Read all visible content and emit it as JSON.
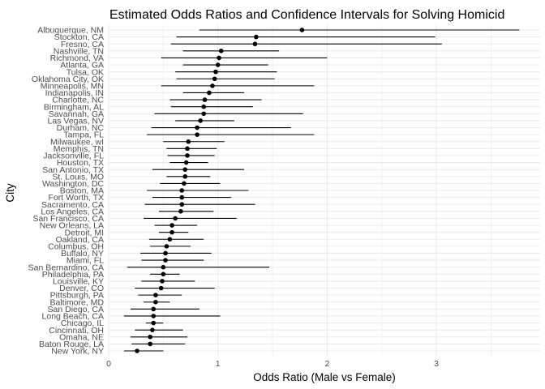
{
  "chart_data": {
    "type": "forest",
    "title": "Estimated Odds Ratios and Confidence Intervals for Solving Homicid",
    "xlabel": "Odds Ratio (Male vs Female)",
    "ylabel": "City",
    "xlim": [
      0,
      3.95
    ],
    "xticks": [
      0,
      1,
      2,
      3
    ],
    "grid": true,
    "colors": {
      "point": "#000000",
      "ci": "#000000",
      "grid": "#ebebeb"
    },
    "cities": [
      {
        "city": "Albuquerque, NM",
        "or": 1.77,
        "lower": 0.83,
        "upper": 3.76
      },
      {
        "city": "Stockton, CA",
        "or": 1.35,
        "lower": 0.62,
        "upper": 2.99
      },
      {
        "city": "Fresno, CA",
        "or": 1.34,
        "lower": 0.57,
        "upper": 3.05
      },
      {
        "city": "Nashville, TN",
        "or": 1.03,
        "lower": 0.68,
        "upper": 1.56
      },
      {
        "city": "Richmond, VA",
        "or": 1.01,
        "lower": 0.48,
        "upper": 2.0
      },
      {
        "city": "Atlanta, GA",
        "or": 1.0,
        "lower": 0.68,
        "upper": 1.46
      },
      {
        "city": "Tulsa, OK",
        "or": 0.98,
        "lower": 0.61,
        "upper": 1.54
      },
      {
        "city": "Oklahoma City, OK",
        "or": 0.97,
        "lower": 0.62,
        "upper": 1.52
      },
      {
        "city": "Minneapolis, MN",
        "or": 0.95,
        "lower": 0.48,
        "upper": 1.88
      },
      {
        "city": "Indianapolis, IN",
        "or": 0.92,
        "lower": 0.68,
        "upper": 1.24
      },
      {
        "city": "Charlotte, NC",
        "or": 0.88,
        "lower": 0.56,
        "upper": 1.4
      },
      {
        "city": "Birmingham, AL",
        "or": 0.87,
        "lower": 0.57,
        "upper": 1.32
      },
      {
        "city": "Savannah, GA",
        "or": 0.87,
        "lower": 0.42,
        "upper": 1.78
      },
      {
        "city": "Las Vegas, NV",
        "or": 0.84,
        "lower": 0.61,
        "upper": 1.15
      },
      {
        "city": "Durham, NC",
        "or": 0.81,
        "lower": 0.39,
        "upper": 1.67
      },
      {
        "city": "Tampa, FL",
        "or": 0.81,
        "lower": 0.35,
        "upper": 1.88
      },
      {
        "city": "Milwaukee, wI",
        "or": 0.73,
        "lower": 0.5,
        "upper": 1.06
      },
      {
        "city": "Memphis, TN",
        "or": 0.72,
        "lower": 0.53,
        "upper": 0.99
      },
      {
        "city": "Jacksonville, FL",
        "or": 0.72,
        "lower": 0.54,
        "upper": 0.97
      },
      {
        "city": "Houston, TX",
        "or": 0.71,
        "lower": 0.56,
        "upper": 0.91
      },
      {
        "city": "San Antonio, TX",
        "or": 0.7,
        "lower": 0.4,
        "upper": 1.24
      },
      {
        "city": "St. Louis, MO",
        "or": 0.7,
        "lower": 0.53,
        "upper": 0.93
      },
      {
        "city": "Washington, DC",
        "or": 0.69,
        "lower": 0.47,
        "upper": 1.02
      },
      {
        "city": "Boston, MA",
        "or": 0.67,
        "lower": 0.35,
        "upper": 1.28
      },
      {
        "city": "Fort Worth, TX",
        "or": 0.67,
        "lower": 0.4,
        "upper": 1.12
      },
      {
        "city": "Sacramento, CA",
        "or": 0.67,
        "lower": 0.33,
        "upper": 1.34
      },
      {
        "city": "Los Angeles, CA",
        "or": 0.66,
        "lower": 0.46,
        "upper": 0.96
      },
      {
        "city": "San Francisco, CA",
        "or": 0.61,
        "lower": 0.32,
        "upper": 1.17
      },
      {
        "city": "New Orleans, LA",
        "or": 0.58,
        "lower": 0.42,
        "upper": 0.81
      },
      {
        "city": "Detroit, MI",
        "or": 0.58,
        "lower": 0.46,
        "upper": 0.73
      },
      {
        "city": "Oakland, CA",
        "or": 0.56,
        "lower": 0.37,
        "upper": 0.87
      },
      {
        "city": "Columbus, OH",
        "or": 0.53,
        "lower": 0.38,
        "upper": 0.75
      },
      {
        "city": "Buffalo, NY",
        "or": 0.52,
        "lower": 0.29,
        "upper": 0.94
      },
      {
        "city": "Miami, FL",
        "or": 0.52,
        "lower": 0.3,
        "upper": 0.87
      },
      {
        "city": "San Bernardino, CA",
        "or": 0.5,
        "lower": 0.17,
        "upper": 1.47
      },
      {
        "city": "Philadelphia, PA",
        "or": 0.5,
        "lower": 0.38,
        "upper": 0.65
      },
      {
        "city": "Louisville, KY",
        "or": 0.49,
        "lower": 0.3,
        "upper": 0.79
      },
      {
        "city": "Denver, CO",
        "or": 0.48,
        "lower": 0.24,
        "upper": 0.97
      },
      {
        "city": "Pittsburgh, PA",
        "or": 0.43,
        "lower": 0.27,
        "upper": 0.67
      },
      {
        "city": "Baltimore, MD",
        "or": 0.43,
        "lower": 0.32,
        "upper": 0.56
      },
      {
        "city": "San Diego, CA",
        "or": 0.41,
        "lower": 0.2,
        "upper": 0.83
      },
      {
        "city": "Long Beach, CA",
        "or": 0.41,
        "lower": 0.14,
        "upper": 1.02
      },
      {
        "city": "Chicago, IL",
        "or": 0.41,
        "lower": 0.34,
        "upper": 0.5
      },
      {
        "city": "Cincinnati, OH",
        "or": 0.4,
        "lower": 0.24,
        "upper": 0.68
      },
      {
        "city": "Omaha, NE",
        "or": 0.38,
        "lower": 0.2,
        "upper": 0.72
      },
      {
        "city": "Baton Rouge, LA",
        "or": 0.38,
        "lower": 0.21,
        "upper": 0.7
      },
      {
        "city": "New York, NY",
        "or": 0.26,
        "lower": 0.14,
        "upper": 0.5
      }
    ]
  }
}
